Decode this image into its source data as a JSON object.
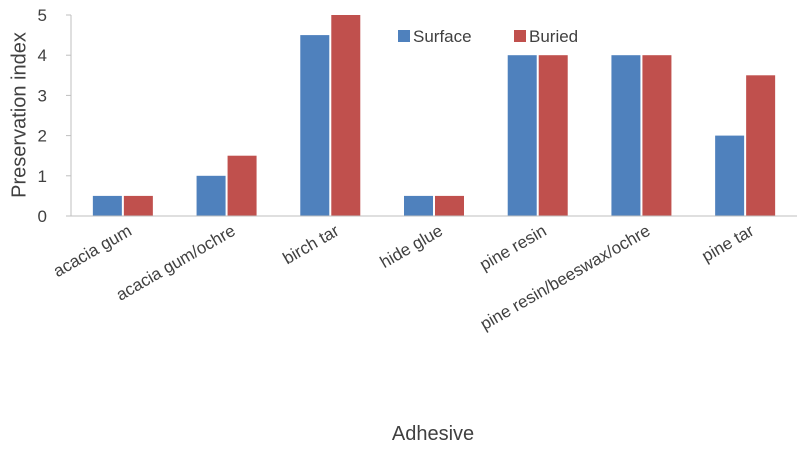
{
  "chart_data": {
    "type": "bar",
    "title": "",
    "xlabel": "Adhesive",
    "ylabel": "Preservation index",
    "ylim": [
      0,
      5
    ],
    "yticks": [
      0,
      1,
      2,
      3,
      4,
      5
    ],
    "grid": false,
    "legend_position": "top-right",
    "categories": [
      "acacia gum",
      "acacia gum/ochre",
      "birch tar",
      "hide glue",
      "pine resin",
      "pine resin/beeswax/ochre",
      "pine tar"
    ],
    "series": [
      {
        "name": "Surface",
        "color": "#4f81bd",
        "values": [
          0.5,
          1,
          4.5,
          0.5,
          4,
          4,
          2
        ]
      },
      {
        "name": "Buried",
        "color": "#c0504d",
        "values": [
          0.5,
          1.5,
          5,
          0.5,
          4,
          4,
          3.5
        ]
      }
    ]
  }
}
